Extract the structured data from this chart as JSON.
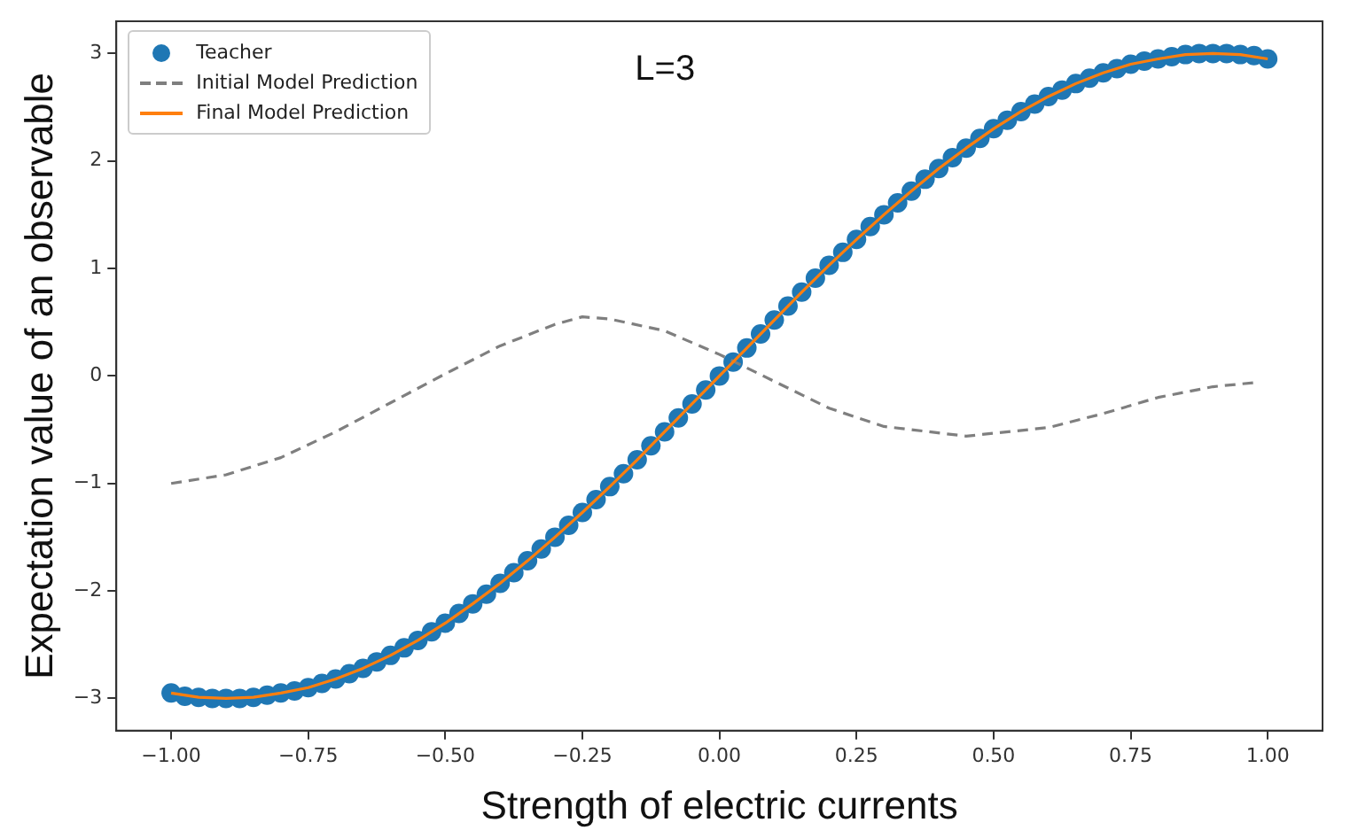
{
  "chart_data": {
    "type": "line",
    "xlabel": "Strength of electric currents",
    "ylabel": "Expectation value of an observable",
    "annotations": [
      "L=3"
    ],
    "xlim": [
      -1.1,
      1.1
    ],
    "ylim": [
      -3.3,
      3.3
    ],
    "xticks": [
      {
        "value": -1,
        "label": "−1.00"
      },
      {
        "value": -0.75,
        "label": "−0.75"
      },
      {
        "value": -0.5,
        "label": "−0.50"
      },
      {
        "value": -0.25,
        "label": "−0.25"
      },
      {
        "value": 0,
        "label": "0.00"
      },
      {
        "value": 0.25,
        "label": "0.25"
      },
      {
        "value": 0.5,
        "label": "0.50"
      },
      {
        "value": 0.75,
        "label": "0.75"
      },
      {
        "value": 1,
        "label": "1.00"
      }
    ],
    "yticks": [
      {
        "value": -3,
        "label": "−3"
      },
      {
        "value": -2,
        "label": "−2"
      },
      {
        "value": -1,
        "label": "−1"
      },
      0,
      1,
      2,
      3
    ],
    "grid": false,
    "legend": "top left",
    "series": [
      {
        "name": "Teacher",
        "type": "scatter",
        "marker": "circle",
        "color": "#1f77b4",
        "x": [
          -1,
          -0.975,
          -0.95,
          -0.925,
          -0.9,
          -0.875,
          -0.85,
          -0.825,
          -0.8,
          -0.775,
          -0.75,
          -0.725,
          -0.7,
          -0.675,
          -0.65,
          -0.625,
          -0.6,
          -0.575,
          -0.55,
          -0.525,
          -0.5,
          -0.475,
          -0.45,
          -0.425,
          -0.4,
          -0.375,
          -0.35,
          -0.325,
          -0.3,
          -0.275,
          -0.25,
          -0.225,
          -0.2,
          -0.175,
          -0.15,
          -0.125,
          -0.1,
          -0.075,
          -0.05,
          -0.025,
          0,
          0.025,
          0.05,
          0.075,
          0.1,
          0.125,
          0.15,
          0.175,
          0.2,
          0.225,
          0.25,
          0.275,
          0.3,
          0.325,
          0.35,
          0.375,
          0.4,
          0.425,
          0.45,
          0.475,
          0.5,
          0.525,
          0.55,
          0.575,
          0.6,
          0.625,
          0.65,
          0.675,
          0.7,
          0.725,
          0.75,
          0.775,
          0.8,
          0.825,
          0.85,
          0.875,
          0.9,
          0.925,
          0.95,
          0.975,
          1
        ],
        "values": [
          -2.95,
          -2.98,
          -2.99,
          -3.0,
          -3.0,
          -3.0,
          -2.99,
          -2.97,
          -2.95,
          -2.93,
          -2.9,
          -2.86,
          -2.82,
          -2.77,
          -2.72,
          -2.66,
          -2.6,
          -2.53,
          -2.46,
          -2.38,
          -2.3,
          -2.21,
          -2.12,
          -2.03,
          -1.93,
          -1.83,
          -1.72,
          -1.61,
          -1.5,
          -1.39,
          -1.27,
          -1.15,
          -1.03,
          -0.91,
          -0.78,
          -0.65,
          -0.52,
          -0.39,
          -0.26,
          -0.13,
          0,
          0.13,
          0.26,
          0.39,
          0.52,
          0.65,
          0.78,
          0.91,
          1.03,
          1.15,
          1.27,
          1.39,
          1.5,
          1.61,
          1.72,
          1.83,
          1.93,
          2.03,
          2.12,
          2.21,
          2.3,
          2.38,
          2.46,
          2.53,
          2.6,
          2.66,
          2.72,
          2.77,
          2.82,
          2.86,
          2.9,
          2.93,
          2.95,
          2.97,
          2.99,
          3.0,
          3.0,
          3.0,
          2.99,
          2.98,
          2.95
        ]
      },
      {
        "name": "Initial Model Prediction",
        "line_style": "dashed",
        "marker": "none",
        "color": "#7f7f7f",
        "x": [
          -1,
          -0.9,
          -0.8,
          -0.7,
          -0.6,
          -0.5,
          -0.4,
          -0.3,
          -0.25,
          -0.2,
          -0.1,
          0,
          0.1,
          0.2,
          0.3,
          0.45,
          0.6,
          0.7,
          0.8,
          0.9,
          0.98
        ],
        "values": [
          -1.0,
          -0.92,
          -0.76,
          -0.52,
          -0.25,
          0.02,
          0.28,
          0.48,
          0.55,
          0.53,
          0.42,
          0.2,
          -0.05,
          -0.3,
          -0.47,
          -0.56,
          -0.48,
          -0.35,
          -0.2,
          -0.1,
          -0.06
        ]
      },
      {
        "name": "Final Model Prediction",
        "line_style": "solid",
        "marker": "none",
        "color": "#ff7f0e",
        "x": [
          -1,
          -0.95,
          -0.9,
          -0.85,
          -0.8,
          -0.75,
          -0.7,
          -0.65,
          -0.6,
          -0.55,
          -0.5,
          -0.45,
          -0.4,
          -0.35,
          -0.3,
          -0.25,
          -0.2,
          -0.15,
          -0.1,
          -0.05,
          0,
          0.05,
          0.1,
          0.15,
          0.2,
          0.25,
          0.3,
          0.35,
          0.4,
          0.45,
          0.5,
          0.55,
          0.6,
          0.65,
          0.7,
          0.75,
          0.8,
          0.85,
          0.9,
          0.95,
          1
        ],
        "values": [
          -2.95,
          -2.99,
          -3.0,
          -2.99,
          -2.95,
          -2.9,
          -2.82,
          -2.72,
          -2.6,
          -2.46,
          -2.3,
          -2.12,
          -1.93,
          -1.72,
          -1.5,
          -1.27,
          -1.03,
          -0.78,
          -0.52,
          -0.26,
          0,
          0.26,
          0.52,
          0.78,
          1.03,
          1.27,
          1.5,
          1.72,
          1.93,
          2.12,
          2.3,
          2.46,
          2.6,
          2.72,
          2.82,
          2.9,
          2.95,
          2.99,
          3.0,
          2.99,
          2.95
        ]
      }
    ]
  }
}
